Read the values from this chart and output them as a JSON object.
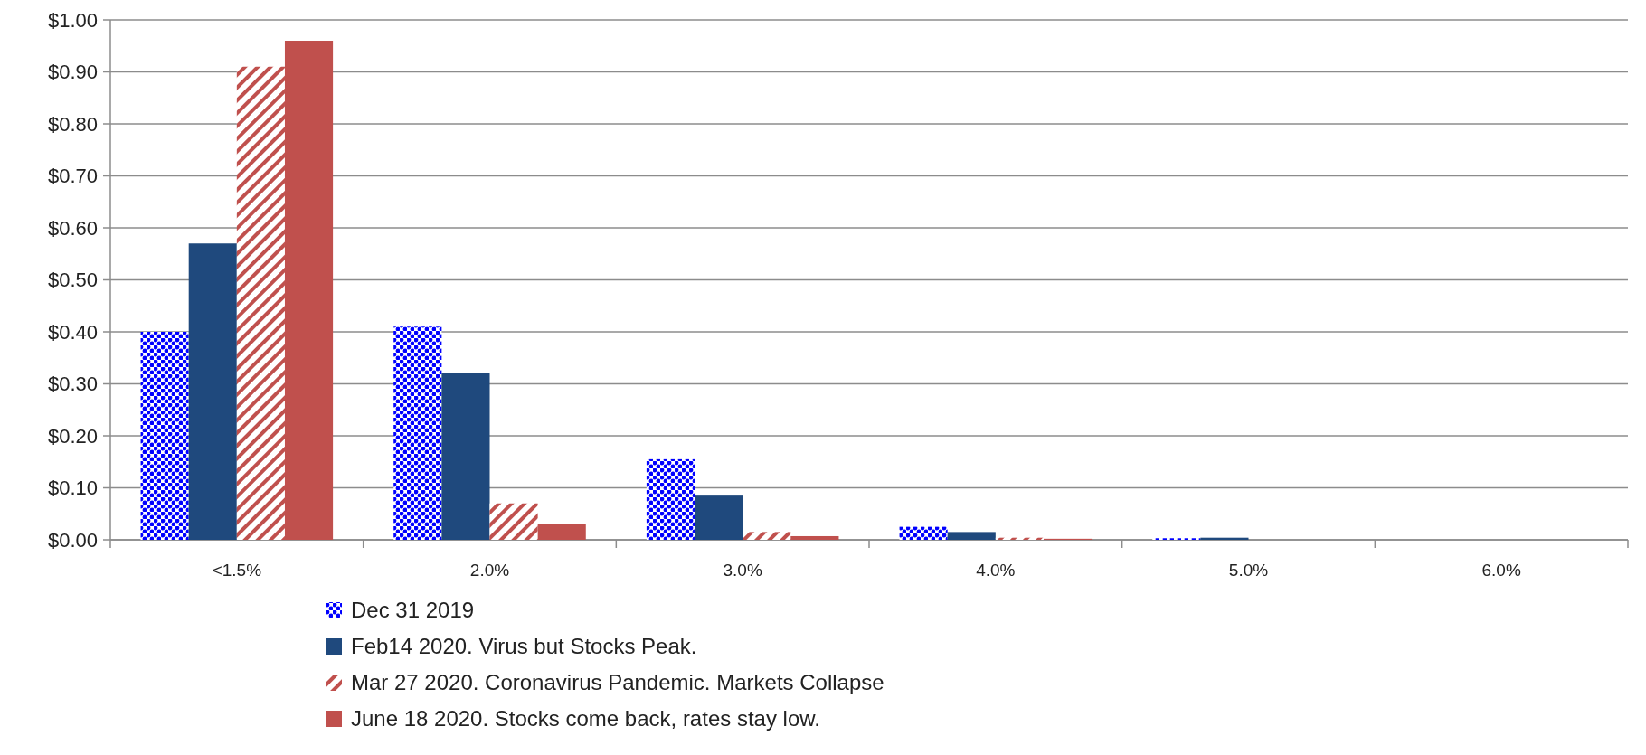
{
  "chart_data": {
    "type": "bar",
    "categories": [
      "<1.5%",
      "2.0%",
      "3.0%",
      "4.0%",
      "5.0%",
      "6.0%"
    ],
    "series": [
      {
        "name": "Dec 31 2019",
        "color": "#0000ff",
        "values": [
          0.4,
          0.41,
          0.155,
          0.025,
          0.003,
          0
        ]
      },
      {
        "name": "Feb14 2020.  Virus but Stocks Peak.",
        "color": "#1f497d",
        "values": [
          0.57,
          0.32,
          0.085,
          0.015,
          0.004,
          0
        ]
      },
      {
        "name": "Mar 27 2020.  Coronavirus Pandemic.  Markets Collapse",
        "color": "#c0504d",
        "values": [
          0.91,
          0.07,
          0.015,
          0.004,
          0,
          0
        ]
      },
      {
        "name": "June 18 2020.  Stocks come back, rates stay low.",
        "color": "#c0504d",
        "values": [
          0.96,
          0.03,
          0.007,
          0.002,
          0,
          0
        ]
      }
    ],
    "ylim": [
      0,
      1
    ],
    "yticks": [
      {
        "value": 0,
        "label": "$0.00"
      },
      {
        "value": 0.1,
        "label": "$0.10"
      },
      {
        "value": 0.2,
        "label": "$0.20"
      },
      {
        "value": 0.3,
        "label": "$0.30"
      },
      {
        "value": 0.4,
        "label": "$0.40"
      },
      {
        "value": 0.5,
        "label": "$0.50"
      },
      {
        "value": 0.6,
        "label": "$0.60"
      },
      {
        "value": 0.7,
        "label": "$0.70"
      },
      {
        "value": 0.8,
        "label": "$0.80"
      },
      {
        "value": 0.9,
        "label": "$0.90"
      },
      {
        "value": 1,
        "label": "$1.00"
      }
    ],
    "grid": "y",
    "legend": "bottom"
  }
}
